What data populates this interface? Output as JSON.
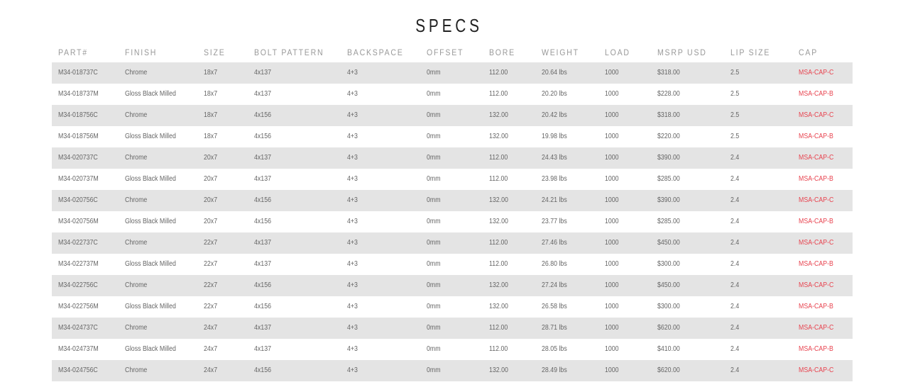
{
  "title": "SPECS",
  "accent_color": "#e8434f",
  "columns": [
    "PART#",
    "FINISH",
    "SIZE",
    "BOLT PATTERN",
    "BACKSPACE",
    "OFFSET",
    "BORE",
    "WEIGHT",
    "LOAD",
    "MSRP USD",
    "LIP SIZE",
    "CAP"
  ],
  "rows": [
    [
      "M34-018737C",
      "Chrome",
      "18x7",
      "4x137",
      "4+3",
      "0mm",
      "112.00",
      "20.64 lbs",
      "1000",
      "$318.00",
      "2.5",
      "MSA-CAP-C"
    ],
    [
      "M34-018737M",
      "Gloss Black Milled",
      "18x7",
      "4x137",
      "4+3",
      "0mm",
      "112.00",
      "20.20 lbs",
      "1000",
      "$228.00",
      "2.5",
      "MSA-CAP-B"
    ],
    [
      "M34-018756C",
      "Chrome",
      "18x7",
      "4x156",
      "4+3",
      "0mm",
      "132.00",
      "20.42 lbs",
      "1000",
      "$318.00",
      "2.5",
      "MSA-CAP-C"
    ],
    [
      "M34-018756M",
      "Gloss Black Milled",
      "18x7",
      "4x156",
      "4+3",
      "0mm",
      "132.00",
      "19.98 lbs",
      "1000",
      "$220.00",
      "2.5",
      "MSA-CAP-B"
    ],
    [
      "M34-020737C",
      "Chrome",
      "20x7",
      "4x137",
      "4+3",
      "0mm",
      "112.00",
      "24.43 lbs",
      "1000",
      "$390.00",
      "2.4",
      "MSA-CAP-C"
    ],
    [
      "M34-020737M",
      "Gloss Black Milled",
      "20x7",
      "4x137",
      "4+3",
      "0mm",
      "112.00",
      "23.98 lbs",
      "1000",
      "$285.00",
      "2.4",
      "MSA-CAP-B"
    ],
    [
      "M34-020756C",
      "Chrome",
      "20x7",
      "4x156",
      "4+3",
      "0mm",
      "132.00",
      "24.21 lbs",
      "1000",
      "$390.00",
      "2.4",
      "MSA-CAP-C"
    ],
    [
      "M34-020756M",
      "Gloss Black Milled",
      "20x7",
      "4x156",
      "4+3",
      "0mm",
      "132.00",
      "23.77 lbs",
      "1000",
      "$285.00",
      "2.4",
      "MSA-CAP-B"
    ],
    [
      "M34-022737C",
      "Chrome",
      "22x7",
      "4x137",
      "4+3",
      "0mm",
      "112.00",
      "27.46 lbs",
      "1000",
      "$450.00",
      "2.4",
      "MSA-CAP-C"
    ],
    [
      "M34-022737M",
      "Gloss Black Milled",
      "22x7",
      "4x137",
      "4+3",
      "0mm",
      "112.00",
      "26.80 lbs",
      "1000",
      "$300.00",
      "2.4",
      "MSA-CAP-B"
    ],
    [
      "M34-022756C",
      "Chrome",
      "22x7",
      "4x156",
      "4+3",
      "0mm",
      "132.00",
      "27.24 lbs",
      "1000",
      "$450.00",
      "2.4",
      "MSA-CAP-C"
    ],
    [
      "M34-022756M",
      "Gloss Black Milled",
      "22x7",
      "4x156",
      "4+3",
      "0mm",
      "132.00",
      "26.58 lbs",
      "1000",
      "$300.00",
      "2.4",
      "MSA-CAP-B"
    ],
    [
      "M34-024737C",
      "Chrome",
      "24x7",
      "4x137",
      "4+3",
      "0mm",
      "112.00",
      "28.71 lbs",
      "1000",
      "$620.00",
      "2.4",
      "MSA-CAP-C"
    ],
    [
      "M34-024737M",
      "Gloss Black Milled",
      "24x7",
      "4x137",
      "4+3",
      "0mm",
      "112.00",
      "28.05 lbs",
      "1000",
      "$410.00",
      "2.4",
      "MSA-CAP-B"
    ],
    [
      "M34-024756C",
      "Chrome",
      "24x7",
      "4x156",
      "4+3",
      "0mm",
      "132.00",
      "28.49 lbs",
      "1000",
      "$620.00",
      "2.4",
      "MSA-CAP-C"
    ]
  ]
}
